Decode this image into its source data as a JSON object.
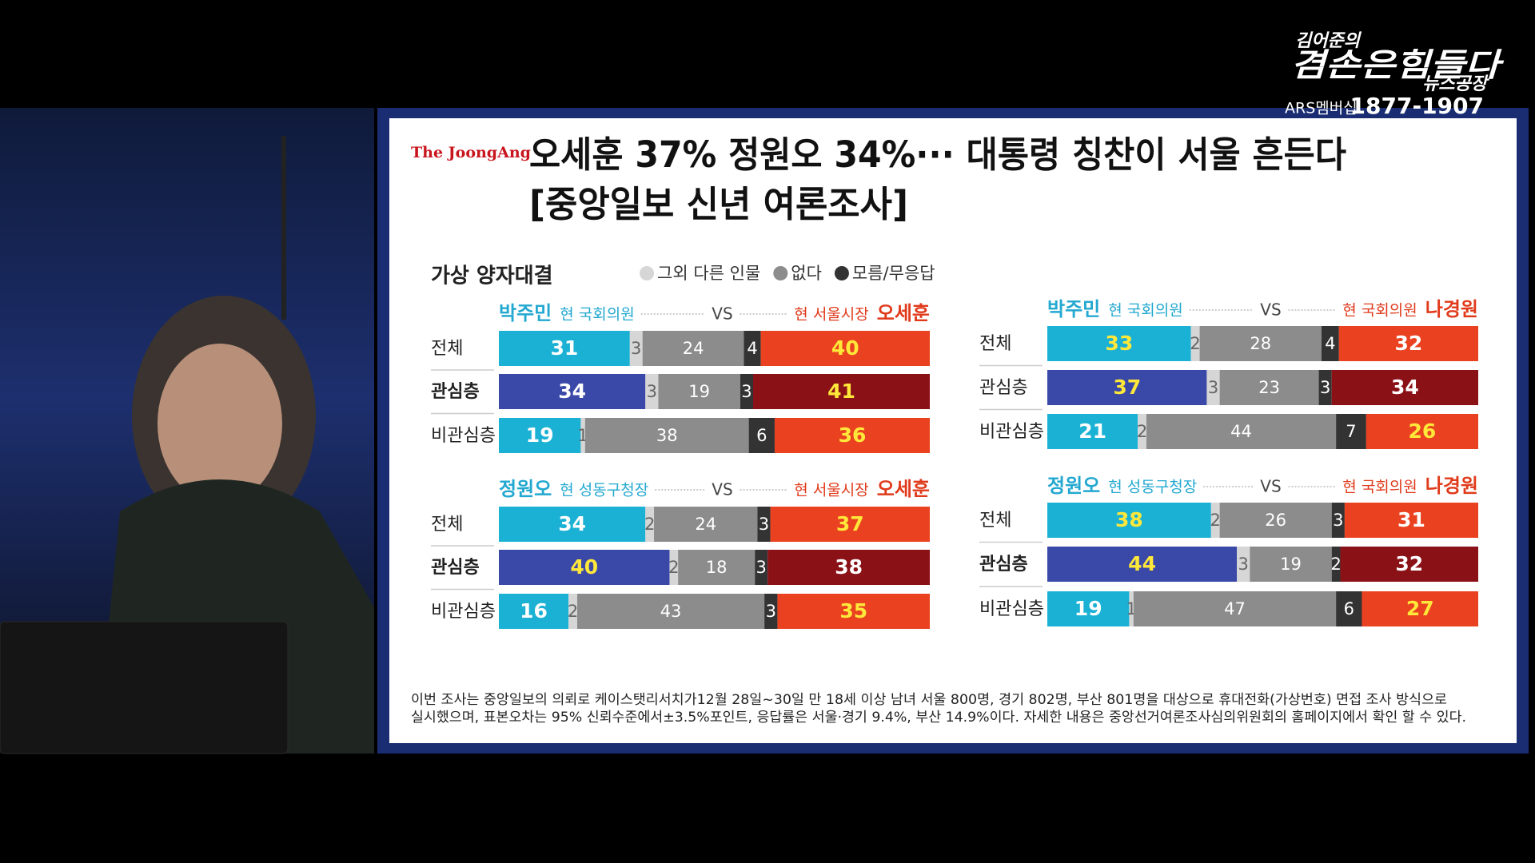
{
  "broadcast": {
    "show_name": "김어준의",
    "show_title": "겸손은힘들다",
    "show_subtitle": "뉴스공장",
    "phone_label": "ARS멤버십",
    "phone": "1877-1907"
  },
  "article": {
    "publisher": "The JoongAng",
    "title": [
      "오세훈 37% 정원오 34%··· 대통령 칭찬이 서울 흔든다",
      "[중앙일보 신년 여론조사]"
    ],
    "footnote": [
      "이번 조사는 중앙일보의 의뢰로 케이스탯리서치가12월 28일~30일 만 18세 이상 남녀 서울 800명, 경기 802명, 부산 801명을 대상으로 휴대전화(가상번호) 면접 조사 방식으로",
      "실시했으며, 표본오차는 95% 신뢰수준에서±3.5%포인트, 응답률은 서울·경기 9.4%, 부산 14.9%이다. 자세한 내용은 중앙선거여론조사심의위원회의 홈페이지에서 확인 할 수 있다."
    ]
  },
  "chart_data": {
    "type": "bar",
    "orientation": "horizontal",
    "stacked": true,
    "title": "가상 양자대결",
    "legend": [
      {
        "name": "그외 다른 인물",
        "color": "#d6d6d6"
      },
      {
        "name": "없다",
        "color": "#8c8c8c"
      },
      {
        "name": "모름/무응답",
        "color": "#333333"
      }
    ],
    "panels": [
      {
        "left": {
          "name": "박주민",
          "role": "현 국회의원",
          "color": "#22a8d0"
        },
        "vs": "VS",
        "right": {
          "name": "오세훈",
          "role": "현 서울시장",
          "color": "#e03a1b"
        },
        "rows": [
          {
            "label": "전체",
            "values": [
              31,
              3,
              24,
              4,
              40
            ],
            "colors": [
              "#1bb1d4",
              "#d6d6d6",
              "#8c8c8c",
              "#333333",
              "#ea4220"
            ]
          },
          {
            "label": "관심층",
            "emphasis": true,
            "values": [
              34,
              3,
              19,
              3,
              41
            ],
            "colors": [
              "#3a48a8",
              "#d6d6d6",
              "#8c8c8c",
              "#333333",
              "#8a1217"
            ]
          },
          {
            "label": "비관심층",
            "values": [
              19,
              1,
              38,
              6,
              36
            ],
            "colors": [
              "#1bb1d4",
              "#d6d6d6",
              "#8c8c8c",
              "#333333",
              "#ea4220"
            ]
          }
        ]
      },
      {
        "left": {
          "name": "박주민",
          "role": "현 국회의원",
          "color": "#22a8d0"
        },
        "vs": "VS",
        "right": {
          "name": "나경원",
          "role": "현 국회의원",
          "color": "#e03a1b"
        },
        "rows": [
          {
            "label": "전체",
            "values": [
              33,
              2,
              28,
              4,
              32
            ],
            "colors": [
              "#1bb1d4",
              "#d6d6d6",
              "#8c8c8c",
              "#333333",
              "#ea4220"
            ]
          },
          {
            "label": "관심층",
            "values": [
              37,
              3,
              23,
              3,
              34
            ],
            "colors": [
              "#3a48a8",
              "#d6d6d6",
              "#8c8c8c",
              "#333333",
              "#8a1217"
            ]
          },
          {
            "label": "비관심층",
            "values": [
              21,
              2,
              44,
              7,
              26
            ],
            "colors": [
              "#1bb1d4",
              "#d6d6d6",
              "#8c8c8c",
              "#333333",
              "#ea4220"
            ]
          }
        ]
      },
      {
        "left": {
          "name": "정원오",
          "role": "현 성동구청장",
          "color": "#22a8d0"
        },
        "vs": "VS",
        "right": {
          "name": "오세훈",
          "role": "현 서울시장",
          "color": "#e03a1b"
        },
        "rows": [
          {
            "label": "전체",
            "values": [
              34,
              2,
              24,
              3,
              37
            ],
            "colors": [
              "#1bb1d4",
              "#d6d6d6",
              "#8c8c8c",
              "#333333",
              "#ea4220"
            ]
          },
          {
            "label": "관심층",
            "emphasis": true,
            "values": [
              40,
              2,
              18,
              3,
              38
            ],
            "colors": [
              "#3a48a8",
              "#d6d6d6",
              "#8c8c8c",
              "#333333",
              "#8a1217"
            ]
          },
          {
            "label": "비관심층",
            "values": [
              16,
              2,
              43,
              3,
              35
            ],
            "colors": [
              "#1bb1d4",
              "#d6d6d6",
              "#8c8c8c",
              "#333333",
              "#ea4220"
            ]
          }
        ]
      },
      {
        "left": {
          "name": "정원오",
          "role": "현 성동구청장",
          "color": "#22a8d0"
        },
        "vs": "VS",
        "right": {
          "name": "나경원",
          "role": "현 국회의원",
          "color": "#e03a1b"
        },
        "rows": [
          {
            "label": "전체",
            "values": [
              38,
              2,
              26,
              3,
              31
            ],
            "colors": [
              "#1bb1d4",
              "#d6d6d6",
              "#8c8c8c",
              "#333333",
              "#ea4220"
            ]
          },
          {
            "label": "관심층",
            "emphasis": true,
            "values": [
              44,
              3,
              19,
              2,
              32
            ],
            "colors": [
              "#3a48a8",
              "#d6d6d6",
              "#8c8c8c",
              "#333333",
              "#8a1217"
            ]
          },
          {
            "label": "비관심층",
            "values": [
              19,
              1,
              47,
              6,
              27
            ],
            "colors": [
              "#1bb1d4",
              "#d6d6d6",
              "#8c8c8c",
              "#333333",
              "#ea4220"
            ]
          }
        ]
      }
    ]
  }
}
